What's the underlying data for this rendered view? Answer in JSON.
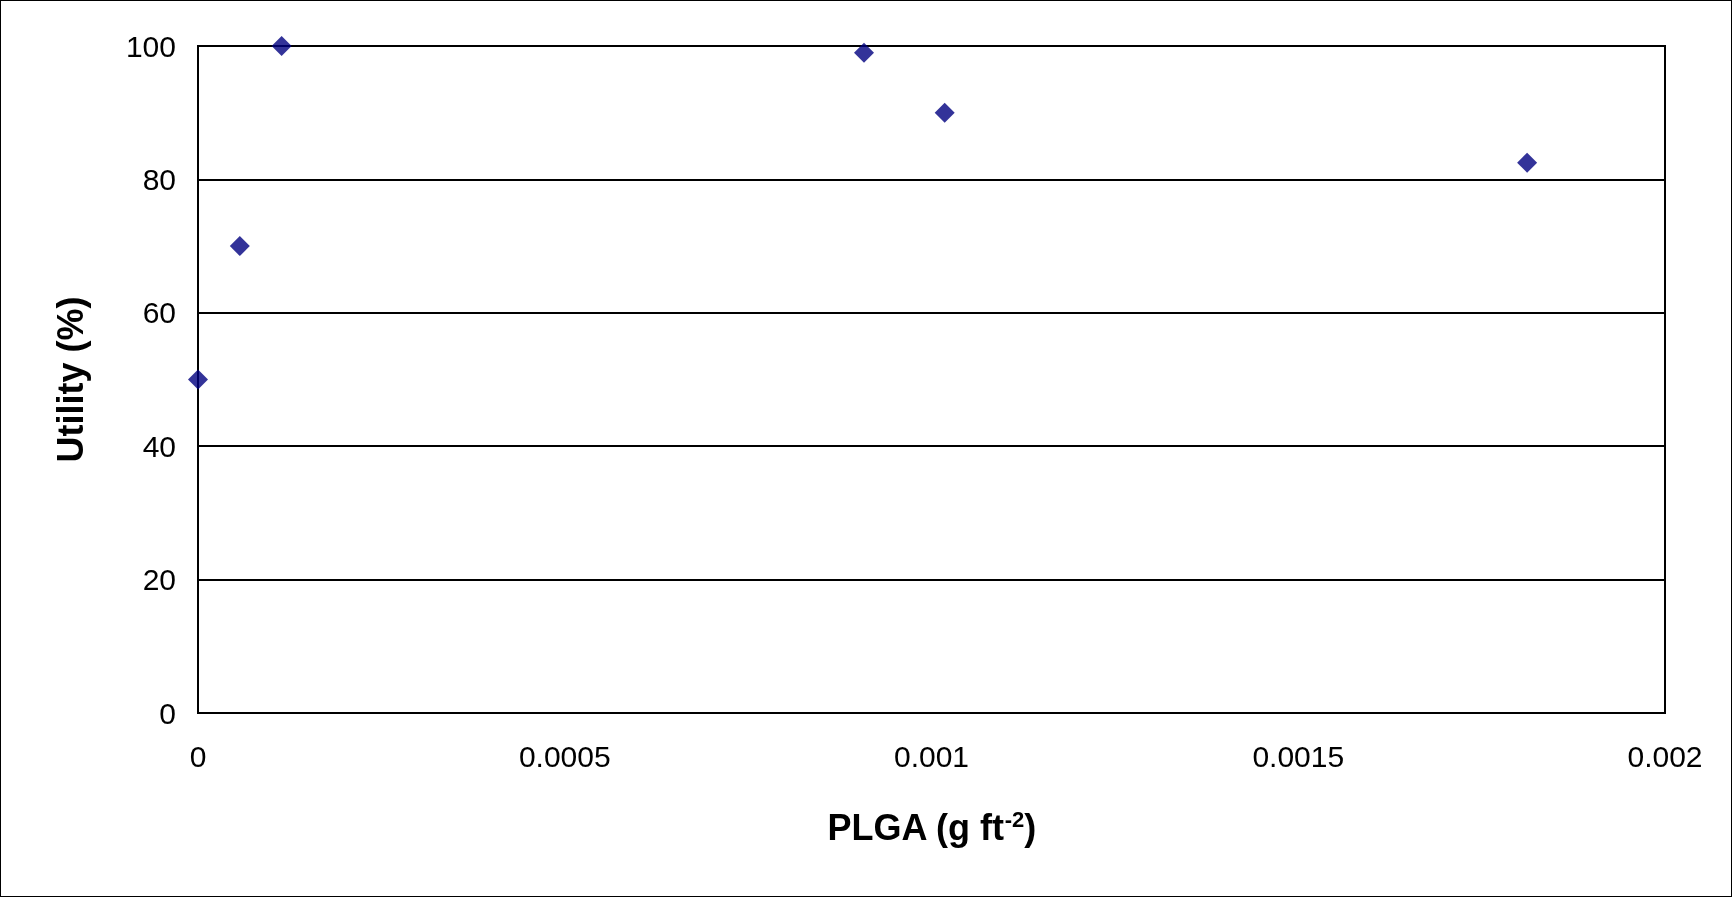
{
  "chart_data": {
    "type": "scatter",
    "xlabel": "PLGA (g ft$^{-2}$)",
    "ylabel": "Utility (%)",
    "x": [
      0,
      5.7e-05,
      0.000114,
      0.000908,
      0.001018,
      0.001812
    ],
    "values": [
      50,
      70,
      100,
      99,
      90,
      82.5
    ],
    "color": "#000080",
    "marker": "diamond",
    "xlim": [
      0,
      0.002
    ],
    "xticks": [
      0,
      0.0005,
      0.001,
      0.0015,
      0.002
    ],
    "ylim": [
      0,
      100
    ],
    "yticks": [
      0,
      20,
      40,
      60,
      80,
      100
    ],
    "grid": "y"
  }
}
